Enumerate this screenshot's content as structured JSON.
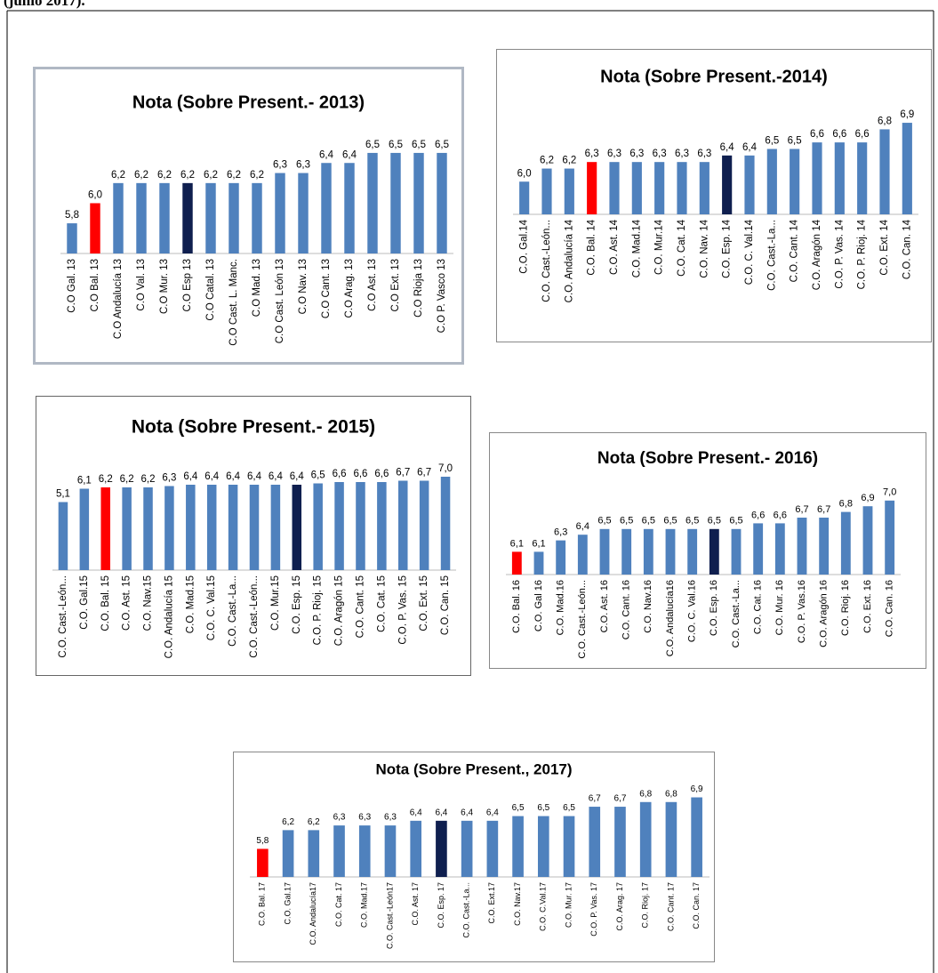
{
  "caption": "(junio 2017).",
  "chart_data": [
    {
      "type": "bar",
      "title": "Nota (Sobre Present.- 2013)",
      "categories": [
        "C.O Gal. 13",
        "C.O Bal. 13",
        "C.O Andalucía 13",
        "C.O Val. 13",
        "C.O Mur. 13",
        "C.O Esp 13",
        "C.O Catal. 13",
        "C.O Cast. L. Manc.",
        "C.O Mad. 13",
        "C.O Cast. León 13",
        "C.O Nav. 13",
        "C.O Cant. 13",
        "C.O Arag. 13",
        "C.O Ast. 13",
        "C.O Ext. 13",
        "C.O Rioja 13",
        "C.O P. Vasco 13"
      ],
      "values": [
        5.8,
        6.0,
        6.2,
        6.2,
        6.2,
        6.2,
        6.2,
        6.2,
        6.2,
        6.3,
        6.3,
        6.4,
        6.4,
        6.5,
        6.5,
        6.5,
        6.5
      ],
      "value_labels": [
        "5,8",
        "6,0",
        "6,2",
        "6,2",
        "6,2",
        "6,2",
        "6,2",
        "6,2",
        "6,2",
        "6,3",
        "6,3",
        "6,4",
        "6,4",
        "6,5",
        "6,5",
        "6,5",
        "6,5"
      ],
      "colors": [
        "#4f81bd",
        "#ff0000",
        "#4f81bd",
        "#4f81bd",
        "#4f81bd",
        "#0f1f4f",
        "#4f81bd",
        "#4f81bd",
        "#4f81bd",
        "#4f81bd",
        "#4f81bd",
        "#4f81bd",
        "#4f81bd",
        "#4f81bd",
        "#4f81bd",
        "#4f81bd",
        "#4f81bd"
      ],
      "ylim": [
        5.5,
        6.8
      ]
    },
    {
      "type": "bar",
      "title": "Nota (Sobre Present.-2014)",
      "categories": [
        "C.O. Gal.14",
        "C.O. Cast.-León...",
        "C.O. Andalucía 14",
        "C.O. Bal. 14",
        "C.O. Ast. 14",
        "C.O. Mad.14",
        "C.O. Mur.14",
        "C.O. Cat. 14",
        "C.O. Nav. 14",
        "C.O. Esp. 14",
        "C.O. C. Val.14",
        "C.O. Cast.-La...",
        "C.O. Cant. 14",
        "C.O. Aragón 14",
        "C.O. P. Vas. 14",
        "C.O. P. Rioj. 14",
        "C.O. Ext. 14",
        "C.O. Can. 14"
      ],
      "values": [
        6.0,
        6.2,
        6.2,
        6.3,
        6.3,
        6.3,
        6.3,
        6.3,
        6.3,
        6.4,
        6.4,
        6.5,
        6.5,
        6.6,
        6.6,
        6.6,
        6.8,
        6.9
      ],
      "value_labels": [
        "6,0",
        "6,2",
        "6,2",
        "6,3",
        "6,3",
        "6,3",
        "6,3",
        "6,3",
        "6,3",
        "6,4",
        "6,4",
        "6,5",
        "6,5",
        "6,6",
        "6,6",
        "6,6",
        "6,8",
        "6,9"
      ],
      "colors": [
        "#4f81bd",
        "#4f81bd",
        "#4f81bd",
        "#ff0000",
        "#4f81bd",
        "#4f81bd",
        "#4f81bd",
        "#4f81bd",
        "#4f81bd",
        "#0f1f4f",
        "#4f81bd",
        "#4f81bd",
        "#4f81bd",
        "#4f81bd",
        "#4f81bd",
        "#4f81bd",
        "#4f81bd",
        "#4f81bd"
      ],
      "ylim": [
        5.5,
        7.2
      ]
    },
    {
      "type": "bar",
      "title": "Nota (Sobre Present.- 2015)",
      "categories": [
        "C.O. Cast.-León...",
        "C.O. Gal.15",
        "C.O. Bal. 15",
        "C.O. Ast. 15",
        "C.O. Nav.15",
        "C.O. Andalucía 15",
        "C.O. Mad.15",
        "C.O. C. Val.15",
        "C.O. Cast.-La...",
        "C.O. Cast.-León...",
        "C.O. Mur.15",
        "C.O. Esp. 15",
        "C.O. P. Rioj. 15",
        "C.O. Aragón 15",
        "C.O. Cant. 15",
        "C.O. Cat. 15",
        "C.O. P. Vas. 15",
        "C.O. Ext. 15",
        "C.O. Can. 15"
      ],
      "values": [
        5.1,
        6.1,
        6.2,
        6.2,
        6.2,
        6.3,
        6.4,
        6.4,
        6.4,
        6.4,
        6.4,
        6.4,
        6.5,
        6.6,
        6.6,
        6.6,
        6.7,
        6.7,
        7.0
      ],
      "value_labels": [
        "5,1",
        "6,1",
        "6,2",
        "6,2",
        "6,2",
        "6,3",
        "6,4",
        "6,4",
        "6,4",
        "6,4",
        "6,4",
        "6,4",
        "6,5",
        "6,6",
        "6,6",
        "6,6",
        "6,7",
        "6,7",
        "7,0"
      ],
      "colors": [
        "#4f81bd",
        "#4f81bd",
        "#ff0000",
        "#4f81bd",
        "#4f81bd",
        "#4f81bd",
        "#4f81bd",
        "#4f81bd",
        "#4f81bd",
        "#4f81bd",
        "#4f81bd",
        "#0f1f4f",
        "#4f81bd",
        "#4f81bd",
        "#4f81bd",
        "#4f81bd",
        "#4f81bd",
        "#4f81bd",
        "#4f81bd"
      ],
      "ylim": [
        0,
        8
      ]
    },
    {
      "type": "bar",
      "title": "Nota (Sobre Present.- 2016)",
      "categories": [
        "C.O. Bal. 16",
        "C.O. Gal 16",
        "C.O. Mad.16",
        "C.O. Cast.-León...",
        "C.O. Ast. 16",
        "C.O. Cant. 16",
        "C.O. Nav.16",
        "C.O. Andalucía16",
        "C.O. C. Val.16",
        "C.O. Esp. 16",
        "C.O. Cast.-La...",
        "C.O. Cat. 16",
        "C.O. Mur. 16",
        "C.O. P. Vas.16",
        "C.O. Aragón 16",
        "C.O. Rioj. 16",
        "C.O. Ext. 16",
        "C.O. Can. 16"
      ],
      "values": [
        6.1,
        6.1,
        6.3,
        6.4,
        6.5,
        6.5,
        6.5,
        6.5,
        6.5,
        6.5,
        6.5,
        6.6,
        6.6,
        6.7,
        6.7,
        6.8,
        6.9,
        7.0
      ],
      "value_labels": [
        "6,1",
        "6,1",
        "6,3",
        "6,4",
        "6,5",
        "6,5",
        "6,5",
        "6,5",
        "6,5",
        "6,5",
        "6,5",
        "6,6",
        "6,6",
        "6,7",
        "6,7",
        "6,8",
        "6,9",
        "7,0"
      ],
      "colors": [
        "#ff0000",
        "#4f81bd",
        "#4f81bd",
        "#4f81bd",
        "#4f81bd",
        "#4f81bd",
        "#4f81bd",
        "#4f81bd",
        "#4f81bd",
        "#0f1f4f",
        "#4f81bd",
        "#4f81bd",
        "#4f81bd",
        "#4f81bd",
        "#4f81bd",
        "#4f81bd",
        "#4f81bd",
        "#4f81bd"
      ],
      "ylim": [
        5.7,
        7.2
      ]
    },
    {
      "type": "bar",
      "title": "Nota (Sobre Present., 2017)",
      "categories": [
        "C.O. Bal. 17",
        "C.O. Gal.17",
        "C.O. Andalucía17",
        "C.O. Cat. 17",
        "C.O. Mad.17",
        "C.O. Cast.-León17",
        "C.O. Ast. 17",
        "C.O. Esp. 17",
        "C.O. Cast.-La...",
        "C.O. Ext.17",
        "C.O. Nav.17",
        "C.O. C.Val.17",
        "C.O. Mur. 17",
        "C.O. P. Vas. 17",
        "C.O. Arag. 17",
        "C.O. Rioj. 17",
        "C.O. Cant. 17",
        "C.O. Can. 17"
      ],
      "values": [
        5.8,
        6.2,
        6.2,
        6.3,
        6.3,
        6.3,
        6.4,
        6.4,
        6.4,
        6.4,
        6.5,
        6.5,
        6.5,
        6.7,
        6.7,
        6.8,
        6.8,
        6.9
      ],
      "value_labels": [
        "5,8",
        "6,2",
        "6,2",
        "6,3",
        "6,3",
        "6,3",
        "6,4",
        "6,4",
        "6,4",
        "6,4",
        "6,5",
        "6,5",
        "6,5",
        "6,7",
        "6,7",
        "6,8",
        "6,8",
        "6,9"
      ],
      "colors": [
        "#ff0000",
        "#4f81bd",
        "#4f81bd",
        "#4f81bd",
        "#4f81bd",
        "#4f81bd",
        "#4f81bd",
        "#0f1f4f",
        "#4f81bd",
        "#4f81bd",
        "#4f81bd",
        "#4f81bd",
        "#4f81bd",
        "#4f81bd",
        "#4f81bd",
        "#4f81bd",
        "#4f81bd",
        "#4f81bd"
      ],
      "ylim": [
        5.2,
        7.1
      ]
    }
  ]
}
